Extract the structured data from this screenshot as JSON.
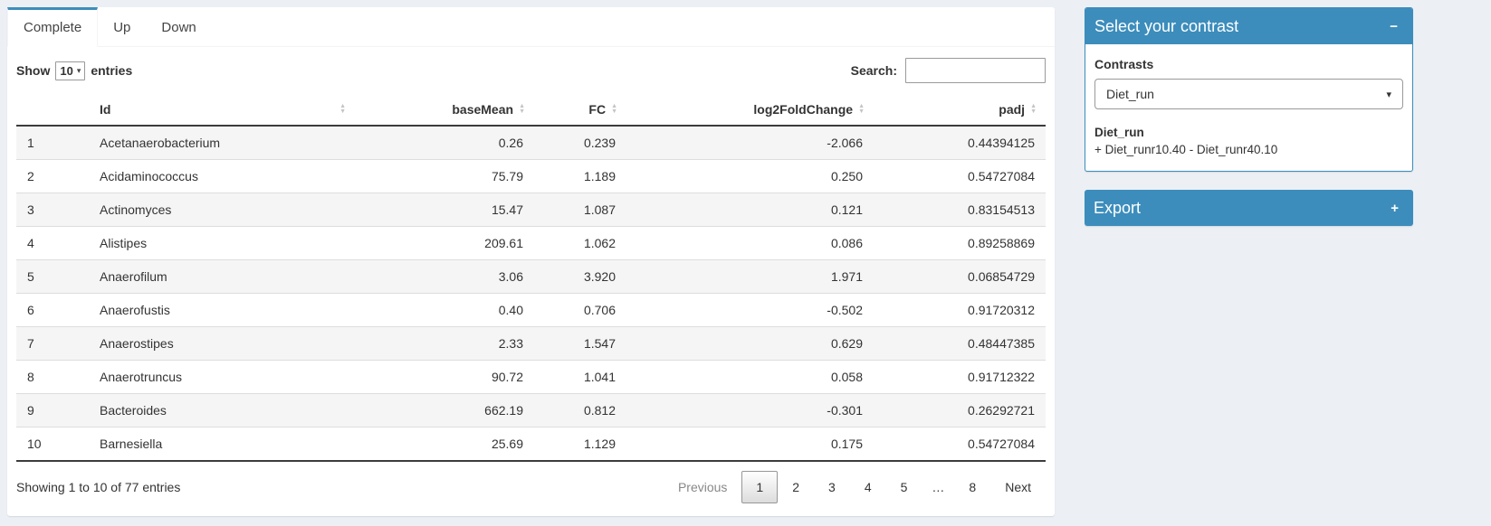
{
  "tabs": [
    {
      "label": "Complete"
    },
    {
      "label": "Up"
    },
    {
      "label": "Down"
    }
  ],
  "length_menu": {
    "show_label": "Show",
    "selected": "10",
    "entries_label": "entries"
  },
  "search": {
    "label": "Search:",
    "value": ""
  },
  "table": {
    "columns": [
      "",
      "Id",
      "baseMean",
      "FC",
      "log2FoldChange",
      "padj"
    ],
    "rows": [
      [
        "1",
        "Acetanaerobacterium",
        "0.26",
        "0.239",
        "-2.066",
        "0.44394125"
      ],
      [
        "2",
        "Acidaminococcus",
        "75.79",
        "1.189",
        "0.250",
        "0.54727084"
      ],
      [
        "3",
        "Actinomyces",
        "15.47",
        "1.087",
        "0.121",
        "0.83154513"
      ],
      [
        "4",
        "Alistipes",
        "209.61",
        "1.062",
        "0.086",
        "0.89258869"
      ],
      [
        "5",
        "Anaerofilum",
        "3.06",
        "3.920",
        "1.971",
        "0.06854729"
      ],
      [
        "6",
        "Anaerofustis",
        "0.40",
        "0.706",
        "-0.502",
        "0.91720312"
      ],
      [
        "7",
        "Anaerostipes",
        "2.33",
        "1.547",
        "0.629",
        "0.48447385"
      ],
      [
        "8",
        "Anaerotruncus",
        "90.72",
        "1.041",
        "0.058",
        "0.91712322"
      ],
      [
        "9",
        "Bacteroides",
        "662.19",
        "0.812",
        "-0.301",
        "0.26292721"
      ],
      [
        "10",
        "Barnesiella",
        "25.69",
        "1.129",
        "0.175",
        "0.54727084"
      ]
    ]
  },
  "info": "Showing 1 to 10 of 77 entries",
  "pagination": {
    "items": [
      "Previous",
      "1",
      "2",
      "3",
      "4",
      "5",
      "…",
      "8",
      "Next"
    ],
    "current": "1"
  },
  "contrast_box": {
    "title": "Select your contrast",
    "collapse_icon": "−",
    "contrasts_label": "Contrasts",
    "selected_contrast": "Diet_run",
    "contrast_name": "Diet_run",
    "contrast_formula": "+ Diet_runr10.40 - Diet_runr40.10"
  },
  "export_box": {
    "title": "Export",
    "expand_icon": "+"
  },
  "colors": {
    "primary": "#3c8dbc",
    "page_bg": "#ecf0f5"
  }
}
